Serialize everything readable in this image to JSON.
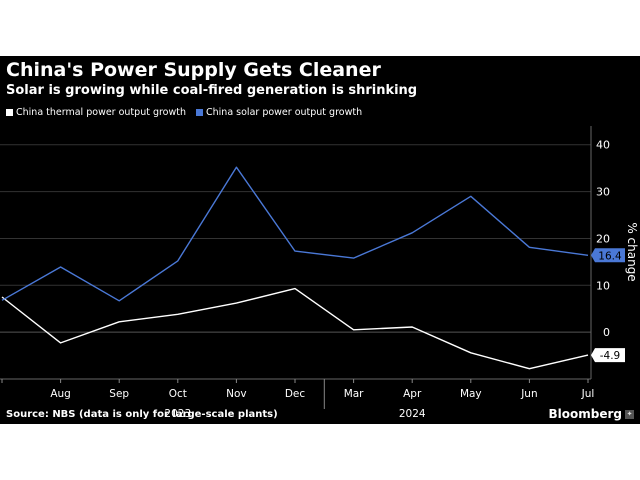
{
  "header": {
    "title": "China's Power Supply Gets Cleaner",
    "subtitle": "Solar is growing while coal-fired generation is shrinking"
  },
  "footer": {
    "source": "Source: NBS (data is only for large-scale plants)",
    "brand": "Bloomberg"
  },
  "colors": {
    "background": "#000000",
    "thermal": "#ffffff",
    "solar": "#4a78d6",
    "grid": "#333333",
    "text": "#ffffff"
  },
  "chart_data": {
    "type": "line",
    "title": "China's Power Supply Gets Cleaner",
    "subtitle": "Solar is growing while coal-fired generation is shrinking",
    "categories": [
      "Jul",
      "Aug",
      "Sep",
      "Oct",
      "Nov",
      "Dec",
      "Mar",
      "Apr",
      "May",
      "Jun",
      "Jul"
    ],
    "tick_labels": [
      "Aug",
      "Sep",
      "Oct",
      "Nov",
      "Dec",
      "Mar",
      "Apr",
      "May",
      "Jun",
      "Jul"
    ],
    "year_labels": [
      {
        "label": "2023",
        "month": "Oct"
      },
      {
        "label": "2024",
        "month": "Apr"
      }
    ],
    "series": [
      {
        "name": "China thermal power output growth",
        "color": "#ffffff",
        "values": [
          7.5,
          -2.3,
          2.2,
          3.8,
          6.2,
          9.3,
          0.5,
          1.1,
          -4.4,
          -7.8,
          -4.9
        ],
        "end_label": "-4.9"
      },
      {
        "name": "China solar power output growth",
        "color": "#4a78d6",
        "values": [
          6.8,
          13.9,
          6.7,
          15.2,
          35.2,
          17.3,
          15.8,
          21.2,
          29.0,
          18.1,
          16.4
        ],
        "end_label": "16.4"
      }
    ],
    "ylabel": "% change",
    "yticks": [
      0,
      10,
      20,
      30,
      40
    ],
    "ylim": [
      -10,
      44
    ],
    "grid": true,
    "legend_position": "top-left",
    "y_axis_position": "right"
  }
}
